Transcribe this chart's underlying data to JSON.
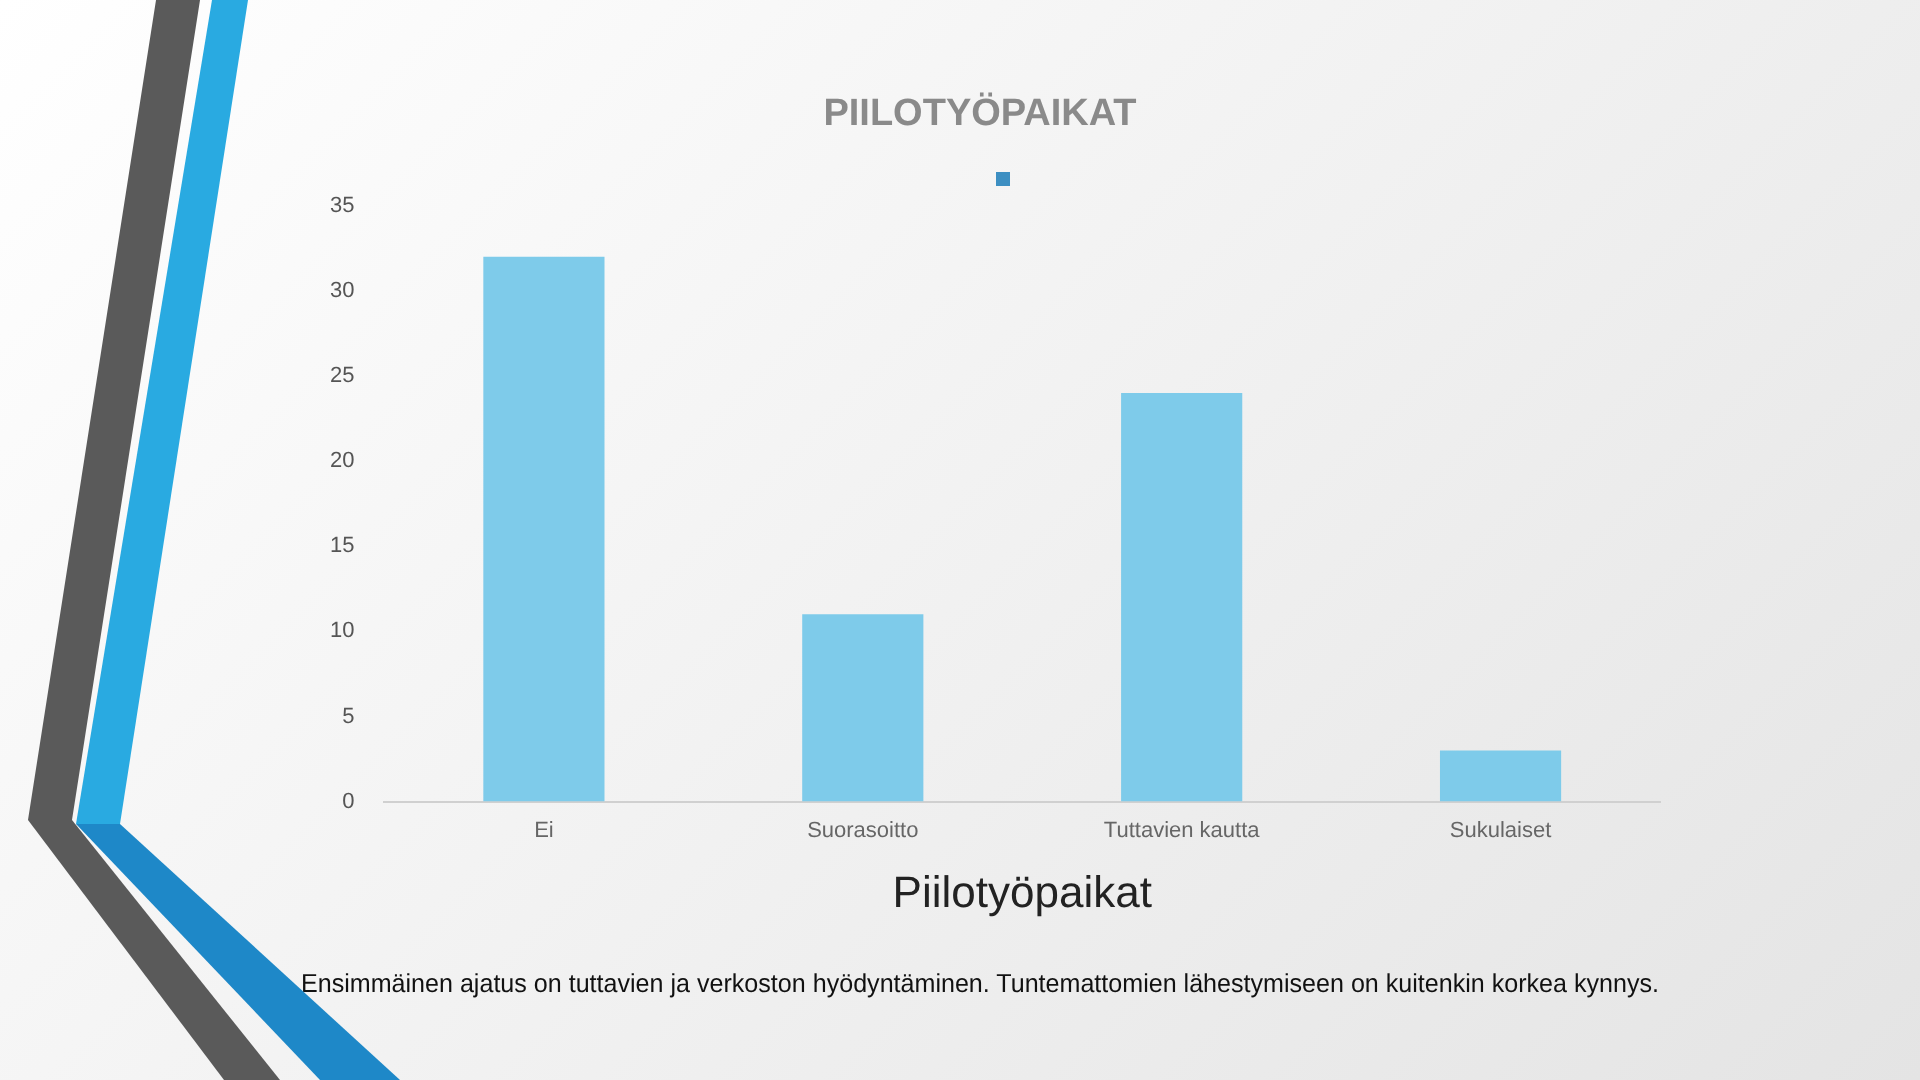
{
  "chart_data": {
    "type": "bar",
    "title": "PIILOTYÖPAIKAT",
    "xlabel": "Piilotyöpaikat",
    "categories": [
      "Ei",
      "Suorasoitto",
      "Tuttavien kautta",
      "Sukulaiset"
    ],
    "values": [
      32,
      11,
      24,
      3
    ],
    "color": "#7ecbea",
    "ylim": [
      0,
      35
    ],
    "yticks": [
      0,
      5,
      10,
      15,
      20,
      25,
      30,
      35
    ],
    "grid": false,
    "annotations": [
      "Ensimmäinen ajatus on tuttavien ja verkoston hyödyntäminen. Tuntemattomien lähestymiseen on kuitenkin korkea kynnys."
    ]
  }
}
